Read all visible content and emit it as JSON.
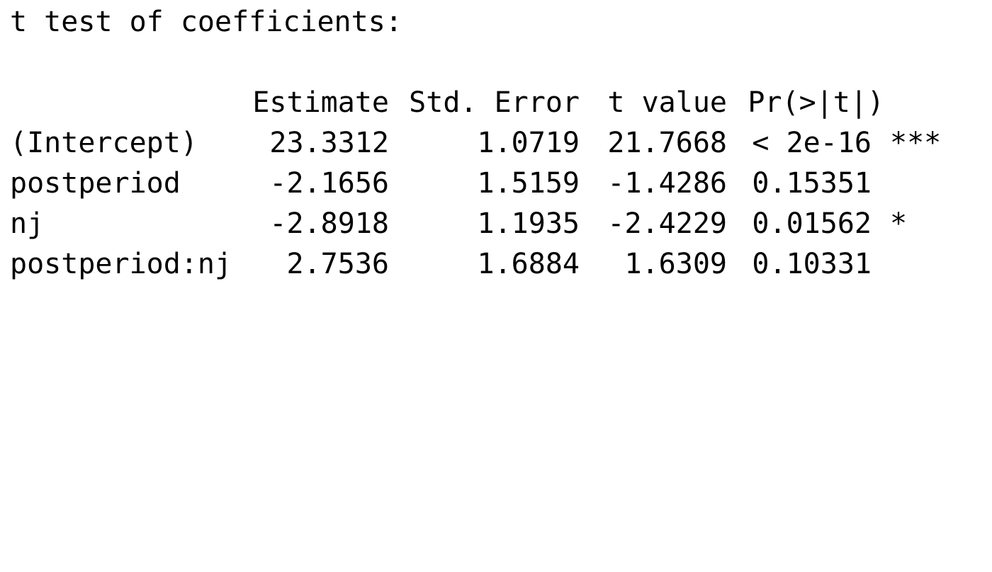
{
  "title": "t test of coefficients:",
  "columns": {
    "estimate": "Estimate",
    "std_error": "Std. Error",
    "t_value": "t value",
    "p_value": "Pr(>|t|)"
  },
  "rows": [
    {
      "name": "(Intercept)",
      "estimate": "23.3312",
      "std_error": "1.0719",
      "t_value": "21.7668",
      "p_value": "< 2e-16",
      "signif": "***"
    },
    {
      "name": "postperiod",
      "estimate": "-2.1656",
      "std_error": "1.5159",
      "t_value": "-1.4286",
      "p_value": "0.15351",
      "signif": ""
    },
    {
      "name": "nj",
      "estimate": "-2.8918",
      "std_error": "1.1935",
      "t_value": "-2.4229",
      "p_value": "0.01562",
      "signif": "*"
    },
    {
      "name": "postperiod:nj",
      "estimate": "2.7536",
      "std_error": "1.6884",
      "t_value": "1.6309",
      "p_value": "0.10331",
      "signif": ""
    }
  ]
}
